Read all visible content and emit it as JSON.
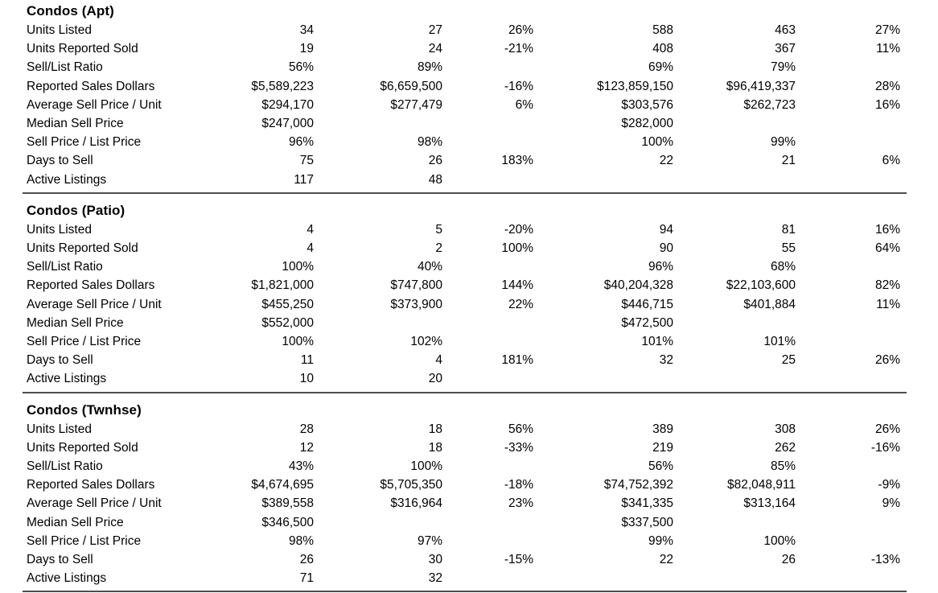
{
  "colors": {
    "background": "#ffffff",
    "text": "#000000",
    "divider": "#4d4d4d"
  },
  "sections": [
    {
      "title": "Condos (Apt)",
      "rows": [
        {
          "label": "Units Listed",
          "values": [
            "34",
            "27",
            "26%",
            "588",
            "463",
            "27%"
          ]
        },
        {
          "label": "Units Reported Sold",
          "values": [
            "19",
            "24",
            "-21%",
            "408",
            "367",
            "11%"
          ]
        },
        {
          "label": "Sell/List Ratio",
          "values": [
            "56%",
            "89%",
            "",
            "69%",
            "79%",
            ""
          ]
        },
        {
          "label": "Reported Sales Dollars",
          "values": [
            "$5,589,223",
            "$6,659,500",
            "-16%",
            "$123,859,150",
            "$96,419,337",
            "28%"
          ]
        },
        {
          "label": "Average Sell Price / Unit",
          "values": [
            "$294,170",
            "$277,479",
            "6%",
            "$303,576",
            "$262,723",
            "16%"
          ]
        },
        {
          "label": "Median Sell Price",
          "values": [
            "$247,000",
            "",
            "",
            "$282,000",
            "",
            ""
          ]
        },
        {
          "label": "Sell Price / List Price",
          "values": [
            "96%",
            "98%",
            "",
            "100%",
            "99%",
            ""
          ]
        },
        {
          "label": "Days to Sell",
          "values": [
            "75",
            "26",
            "183%",
            "22",
            "21",
            "6%"
          ]
        },
        {
          "label": "Active Listings",
          "values": [
            "117",
            "48",
            "",
            "",
            "",
            ""
          ]
        }
      ]
    },
    {
      "title": "Condos (Patio)",
      "rows": [
        {
          "label": "Units Listed",
          "values": [
            "4",
            "5",
            "-20%",
            "94",
            "81",
            "16%"
          ]
        },
        {
          "label": "Units Reported Sold",
          "values": [
            "4",
            "2",
            "100%",
            "90",
            "55",
            "64%"
          ]
        },
        {
          "label": "Sell/List Ratio",
          "values": [
            "100%",
            "40%",
            "",
            "96%",
            "68%",
            ""
          ]
        },
        {
          "label": "Reported Sales Dollars",
          "values": [
            "$1,821,000",
            "$747,800",
            "144%",
            "$40,204,328",
            "$22,103,600",
            "82%"
          ]
        },
        {
          "label": "Average Sell Price / Unit",
          "values": [
            "$455,250",
            "$373,900",
            "22%",
            "$446,715",
            "$401,884",
            "11%"
          ]
        },
        {
          "label": "Median Sell Price",
          "values": [
            "$552,000",
            "",
            "",
            "$472,500",
            "",
            ""
          ]
        },
        {
          "label": "Sell Price / List Price",
          "values": [
            "100%",
            "102%",
            "",
            "101%",
            "101%",
            ""
          ]
        },
        {
          "label": "Days to Sell",
          "values": [
            "11",
            "4",
            "181%",
            "32",
            "25",
            "26%"
          ]
        },
        {
          "label": "Active Listings",
          "values": [
            "10",
            "20",
            "",
            "",
            "",
            ""
          ]
        }
      ]
    },
    {
      "title": "Condos (Twnhse)",
      "rows": [
        {
          "label": "Units Listed",
          "values": [
            "28",
            "18",
            "56%",
            "389",
            "308",
            "26%"
          ]
        },
        {
          "label": "Units Reported Sold",
          "values": [
            "12",
            "18",
            "-33%",
            "219",
            "262",
            "-16%"
          ]
        },
        {
          "label": "Sell/List Ratio",
          "values": [
            "43%",
            "100%",
            "",
            "56%",
            "85%",
            ""
          ]
        },
        {
          "label": "Reported Sales Dollars",
          "values": [
            "$4,674,695",
            "$5,705,350",
            "-18%",
            "$74,752,392",
            "$82,048,911",
            "-9%"
          ]
        },
        {
          "label": "Average Sell Price / Unit",
          "values": [
            "$389,558",
            "$316,964",
            "23%",
            "$341,335",
            "$313,164",
            "9%"
          ]
        },
        {
          "label": "Median Sell Price",
          "values": [
            "$346,500",
            "",
            "",
            "$337,500",
            "",
            ""
          ]
        },
        {
          "label": "Sell Price / List Price",
          "values": [
            "98%",
            "97%",
            "",
            "99%",
            "100%",
            ""
          ]
        },
        {
          "label": "Days to Sell",
          "values": [
            "26",
            "30",
            "-15%",
            "22",
            "26",
            "-13%"
          ]
        },
        {
          "label": "Active Listings",
          "values": [
            "71",
            "32",
            "",
            "",
            "",
            ""
          ]
        }
      ]
    }
  ]
}
